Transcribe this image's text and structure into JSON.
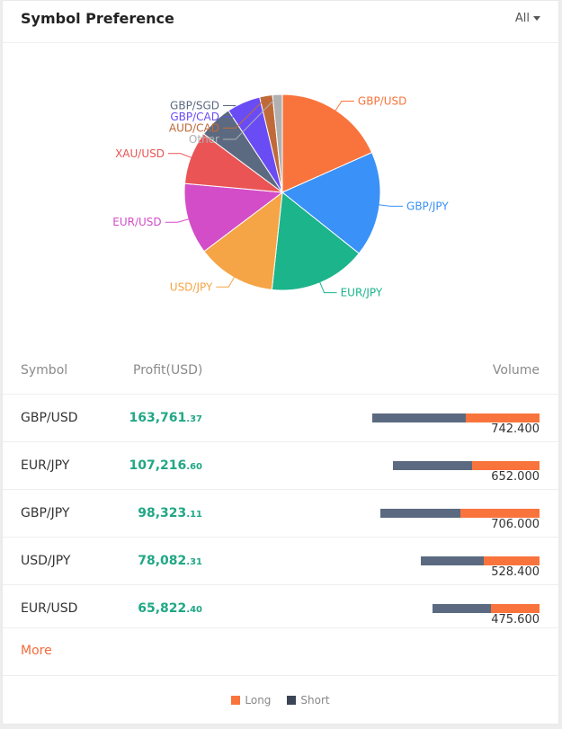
{
  "header": {
    "title": "Symbol Preference",
    "filter": "All"
  },
  "chart_data": {
    "type": "pie",
    "slices": [
      {
        "label": "GBP/USD",
        "value": 17.2,
        "color": "#f9743c"
      },
      {
        "label": "GBP/JPY",
        "value": 16.3,
        "color": "#3a91f7"
      },
      {
        "label": "EUR/JPY",
        "value": 15.0,
        "color": "#1bb48b"
      },
      {
        "label": "USD/JPY",
        "value": 12.2,
        "color": "#f5a545"
      },
      {
        "label": "EUR/USD",
        "value": 11.0,
        "color": "#d24dc7"
      },
      {
        "label": "XAU/USD",
        "value": 8.2,
        "color": "#ea5455"
      },
      {
        "label": "GBP/SGD",
        "value": 5.2,
        "color": "#5b6a80"
      },
      {
        "label": "GBP/CAD",
        "value": 5.2,
        "color": "#6a4cf5"
      },
      {
        "label": "AUD/CAD",
        "value": 2.0,
        "color": "#c06a3a"
      },
      {
        "label": "Other",
        "value": 1.5,
        "color": "#b0b0b0"
      }
    ]
  },
  "table": {
    "headers": {
      "symbol": "Symbol",
      "profit": "Profit(USD)",
      "volume": "Volume"
    },
    "rows": [
      {
        "symbol": "GBP/USD",
        "profit_int": "163,761",
        "profit_dec": ".37",
        "volume": "742.400",
        "volume_value": 742.4,
        "long_fraction": 0.44
      },
      {
        "symbol": "EUR/JPY",
        "profit_int": "107,216",
        "profit_dec": ".60",
        "volume": "652.000",
        "volume_value": 652.0,
        "long_fraction": 0.46
      },
      {
        "symbol": "GBP/JPY",
        "profit_int": "98,323",
        "profit_dec": ".11",
        "volume": "706.000",
        "volume_value": 706.0,
        "long_fraction": 0.5
      },
      {
        "symbol": "USD/JPY",
        "profit_int": "78,082",
        "profit_dec": ".31",
        "volume": "528.400",
        "volume_value": 528.4,
        "long_fraction": 0.47
      },
      {
        "symbol": "EUR/USD",
        "profit_int": "65,822",
        "profit_dec": ".40",
        "volume": "475.600",
        "volume_value": 475.6,
        "long_fraction": 0.45
      }
    ]
  },
  "more_label": "More",
  "legend": [
    {
      "label": "Long",
      "color": "#f9743c"
    },
    {
      "label": "Short",
      "color": "#3a4556"
    }
  ]
}
